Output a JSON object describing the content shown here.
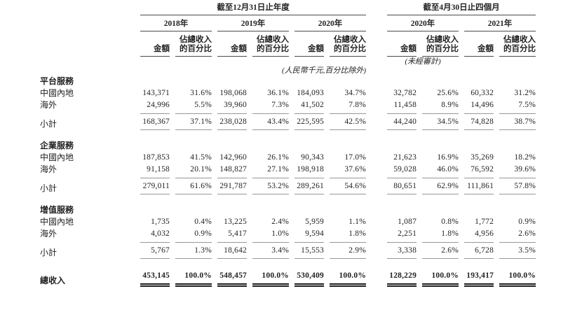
{
  "table": {
    "header": {
      "period1": "截至12月31日止年度",
      "period2": "截至4月30日止四個月",
      "years": [
        "2018年",
        "2019年",
        "2020年",
        "2020年",
        "2021年"
      ],
      "amount_label": "金額",
      "pct_line1": "佔總收入",
      "pct_line2": "的百分比",
      "unaudited_note": "(未經審計)",
      "basis_note": "(人民幣千元,百分比除外)"
    },
    "sections": [
      {
        "title": "平台服務",
        "rows": [
          {
            "label": "中國內地",
            "values": [
              "143,371",
              "31.6%",
              "198,068",
              "36.1%",
              "184,093",
              "34.7%",
              "32,782",
              "25.6%",
              "60,332",
              "31.2%"
            ]
          },
          {
            "label": "海外",
            "values": [
              "24,996",
              "5.5%",
              "39,960",
              "7.3%",
              "41,502",
              "7.8%",
              "11,458",
              "8.9%",
              "14,496",
              "7.5%"
            ]
          }
        ],
        "subtotal": {
          "label": "小計",
          "values": [
            "168,367",
            "37.1%",
            "238,028",
            "43.4%",
            "225,595",
            "42.5%",
            "44,240",
            "34.5%",
            "74,828",
            "38.7%"
          ]
        }
      },
      {
        "title": "企業服務",
        "rows": [
          {
            "label": "中國內地",
            "values": [
              "187,853",
              "41.5%",
              "142,960",
              "26.1%",
              "90,343",
              "17.0%",
              "21,623",
              "16.9%",
              "35,269",
              "18.2%"
            ]
          },
          {
            "label": "海外",
            "values": [
              "91,158",
              "20.1%",
              "148,827",
              "27.1%",
              "198,918",
              "37.6%",
              "59,028",
              "46.0%",
              "76,592",
              "39.6%"
            ]
          }
        ],
        "subtotal": {
          "label": "小計",
          "values": [
            "279,011",
            "61.6%",
            "291,787",
            "53.2%",
            "289,261",
            "54.6%",
            "80,651",
            "62.9%",
            "111,861",
            "57.8%"
          ]
        }
      },
      {
        "title": "增值服務",
        "rows": [
          {
            "label": "中國內地",
            "values": [
              "1,735",
              "0.4%",
              "13,225",
              "2.4%",
              "5,959",
              "1.1%",
              "1,087",
              "0.8%",
              "1,772",
              "0.9%"
            ]
          },
          {
            "label": "海外",
            "values": [
              "4,032",
              "0.9%",
              "5,417",
              "1.0%",
              "9,594",
              "1.8%",
              "2,251",
              "1.8%",
              "4,956",
              "2.6%"
            ]
          }
        ],
        "subtotal": {
          "label": "小計",
          "values": [
            "5,767",
            "1.3%",
            "18,642",
            "3.4%",
            "15,553",
            "2.9%",
            "3,338",
            "2.6%",
            "6,728",
            "3.5%"
          ]
        }
      }
    ],
    "total": {
      "label": "總收入",
      "values": [
        "453,145",
        "100.0%",
        "548,457",
        "100.0%",
        "530,409",
        "100.0%",
        "128,229",
        "100.0%",
        "193,417",
        "100.0%"
      ]
    }
  }
}
